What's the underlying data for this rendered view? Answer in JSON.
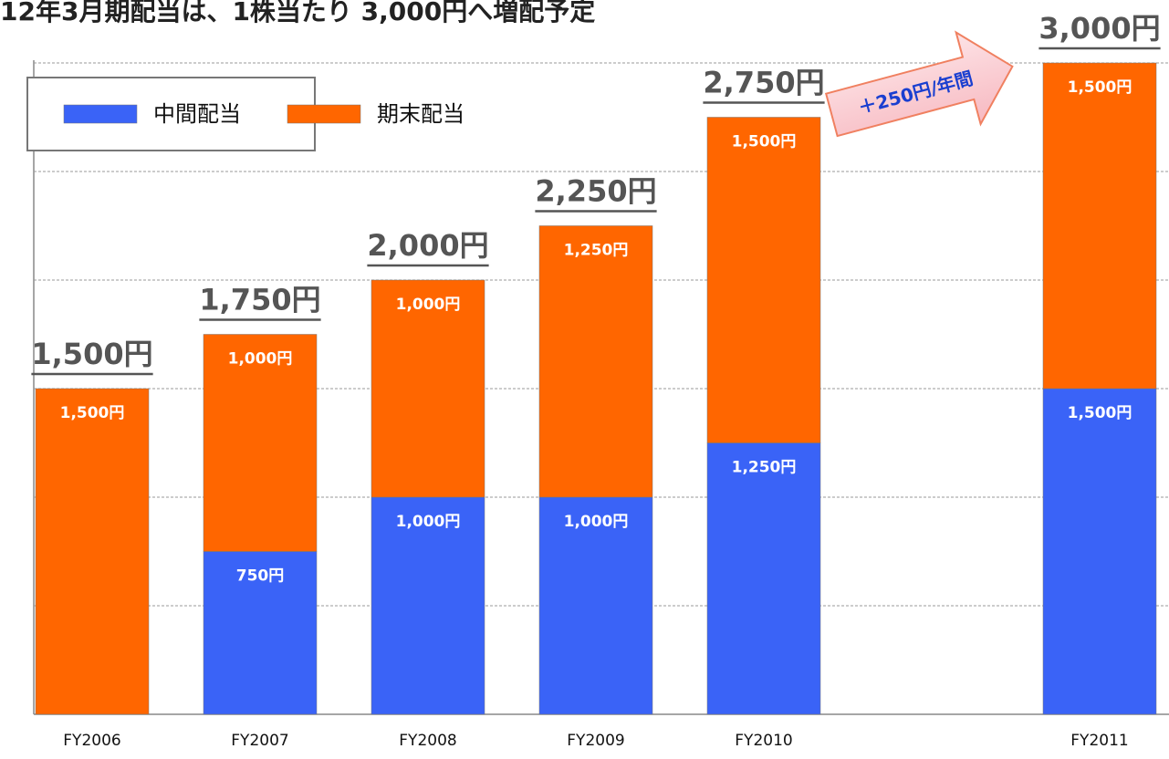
{
  "chart_data": {
    "type": "stacked_bar",
    "title": "12年3月期配当は、1株当たり 3,000円へ増配予定",
    "categories": [
      "FY2006",
      "FY2007",
      "FY2008",
      "FY2009",
      "FY2010",
      null,
      "FY2011"
    ],
    "series": [
      {
        "name": "中間配当",
        "color": "#3a63f7",
        "values": [
          null,
          750,
          1000,
          1000,
          1250,
          null,
          1500
        ],
        "value_labels": [
          null,
          "750円",
          "1,000円",
          "1,000円",
          "1,250円",
          null,
          "1,500円"
        ]
      },
      {
        "name": "期末配当",
        "color": "#ff6600",
        "values": [
          1500,
          1000,
          1000,
          1250,
          1500,
          null,
          1500
        ],
        "value_labels": [
          "1,500円",
          "1,000円",
          "1,000円",
          "1,250円",
          "1,500円",
          null,
          "1,500円"
        ]
      }
    ],
    "totals": [
      1500,
      1750,
      2000,
      2250,
      2750,
      null,
      3000
    ],
    "total_labels": [
      "1,500円",
      "1,750円",
      "2,000円",
      "2,250円",
      "2,750円",
      null,
      "3,000円"
    ],
    "annotation": "＋250円/年間",
    "ylim": [
      0,
      3000
    ],
    "yticks": [
      0,
      500,
      1000,
      1500,
      2000,
      2500,
      3000
    ],
    "grid": true
  }
}
